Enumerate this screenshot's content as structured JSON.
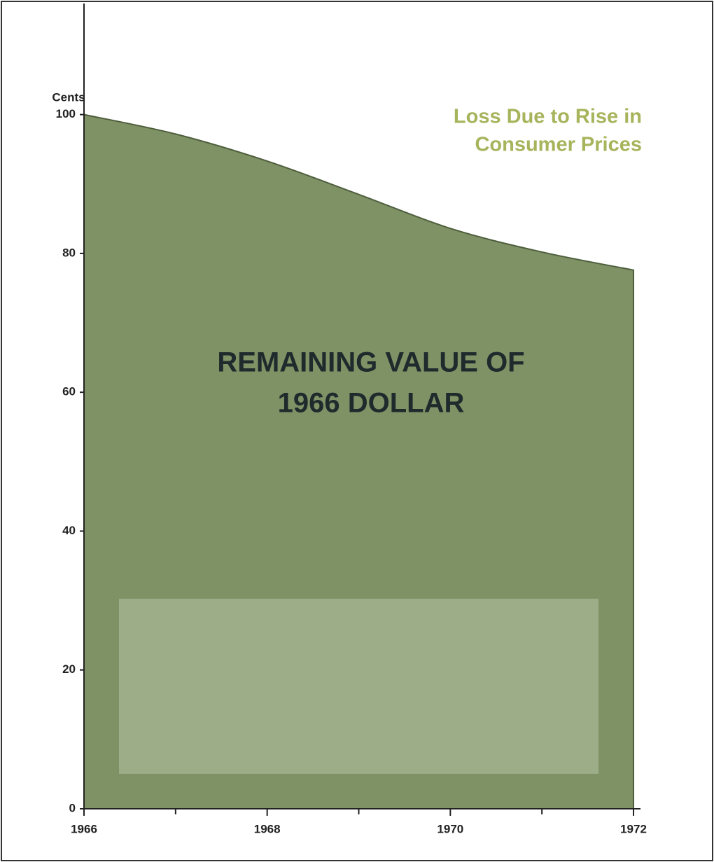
{
  "chart_data": {
    "type": "area",
    "y_label": "Cents",
    "x": [
      1966,
      1967,
      1968,
      1969,
      1970,
      1971,
      1972
    ],
    "series": [
      {
        "name": "Remaining value",
        "color": "#7f9266",
        "values": [
          100,
          97.2,
          93.3,
          88.5,
          83.6,
          80.2,
          77.6
        ]
      }
    ],
    "xlim": [
      1966,
      1972
    ],
    "ylim": [
      0,
      116
    ],
    "xticks": [
      1966,
      1968,
      1970,
      1972
    ],
    "minor_xticks": [
      1967,
      1969,
      1971
    ],
    "yticks": [
      0,
      20,
      40,
      60,
      80,
      100
    ],
    "annotations": [
      {
        "lines": [
          "Loss Due to Rise in",
          "Consumer Prices"
        ],
        "color": "#a7b45c"
      },
      {
        "lines": [
          "REMAINING VALUE OF",
          "1966 DOLLAR"
        ],
        "color": "#1e2a2c"
      }
    ]
  }
}
